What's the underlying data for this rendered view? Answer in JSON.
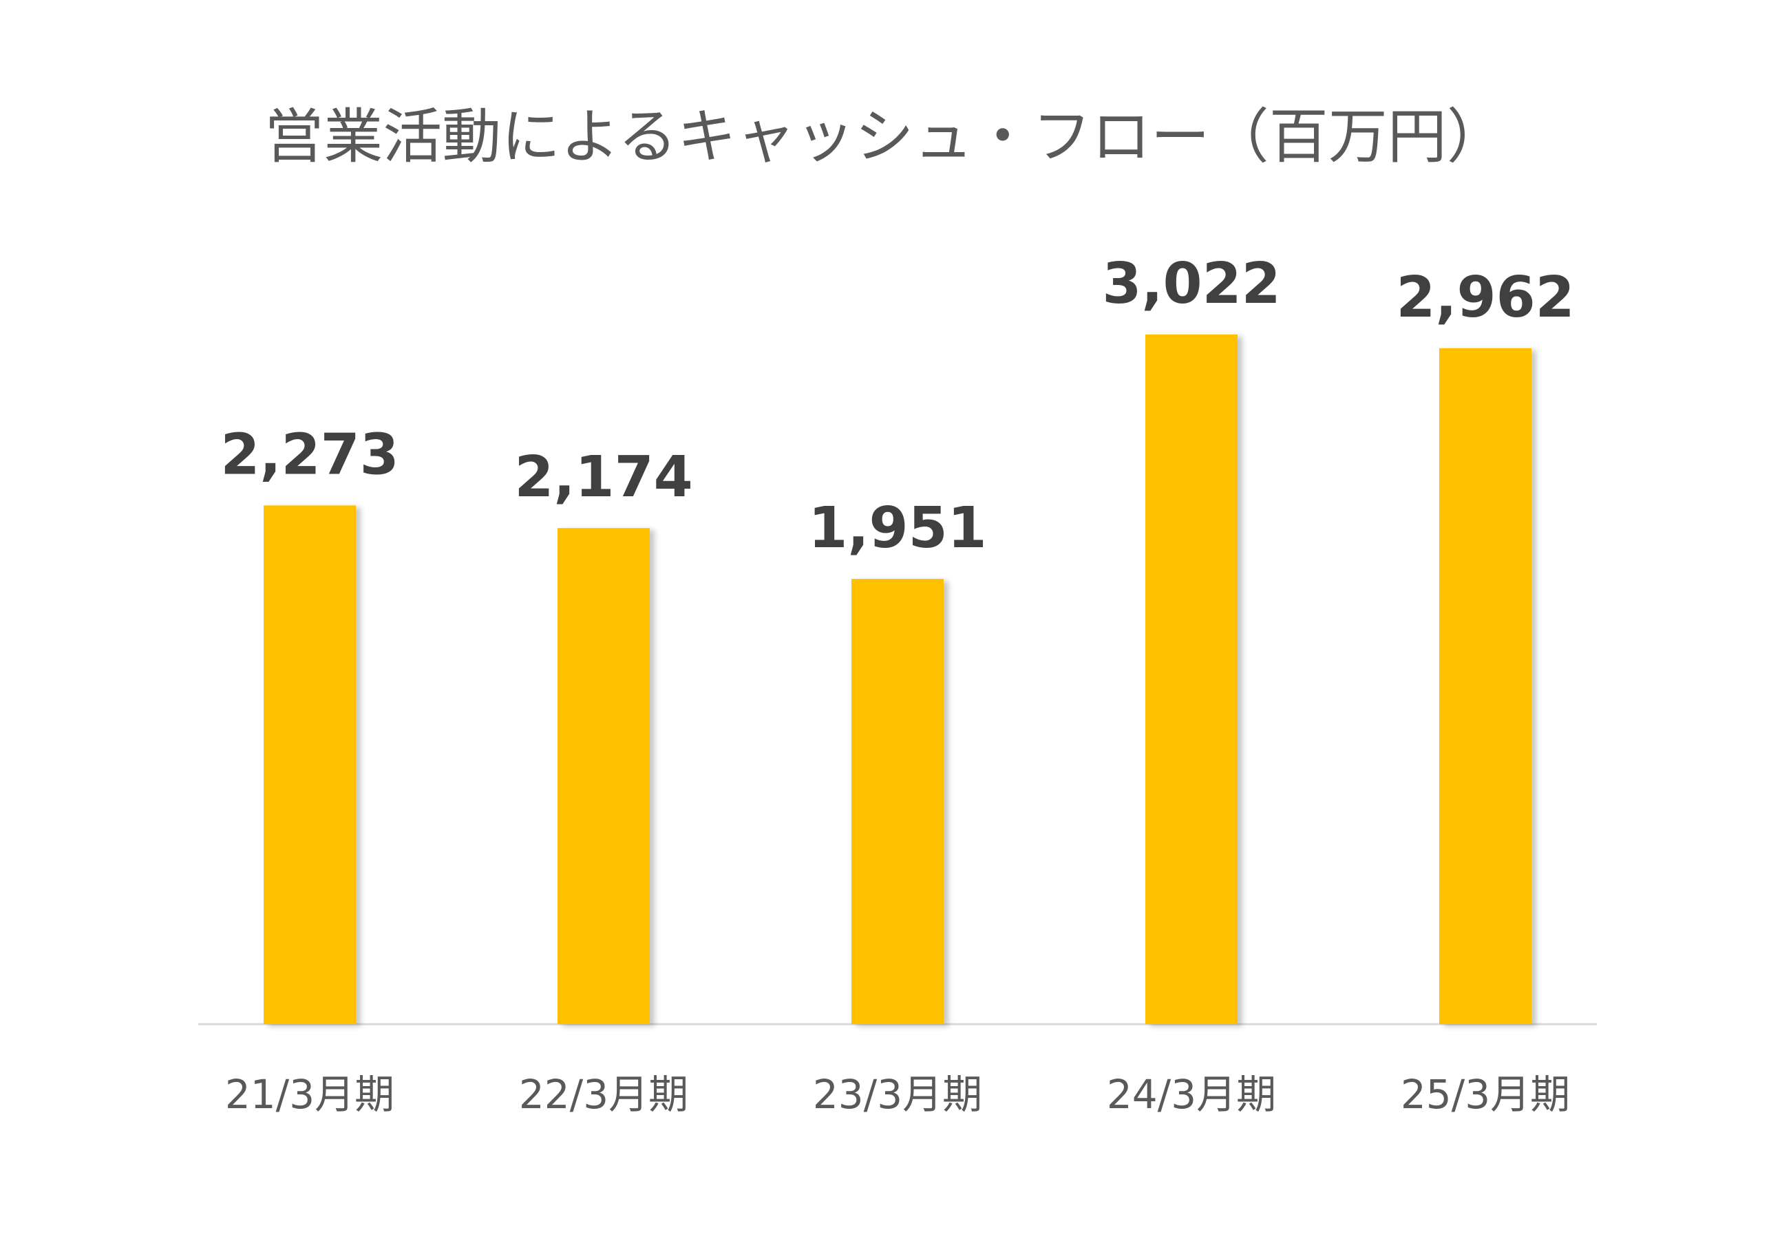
{
  "chart_data": {
    "type": "bar",
    "title": "営業活動によるキャッシュ・フロー（百万円）",
    "categories": [
      "21/3月期",
      "22/3月期",
      "23/3月期",
      "24/3月期",
      "25/3月期"
    ],
    "values": [
      2273,
      2174,
      1951,
      3022,
      2962
    ],
    "data_labels": [
      "2,273",
      "2,174",
      "1,951",
      "3,022",
      "2,962"
    ],
    "xlabel": "",
    "ylabel": "",
    "ylim": [
      0,
      3022
    ],
    "grid": false,
    "legend": "none",
    "bar_color": "#FFC000",
    "axis_color": "#D9D9D9"
  }
}
